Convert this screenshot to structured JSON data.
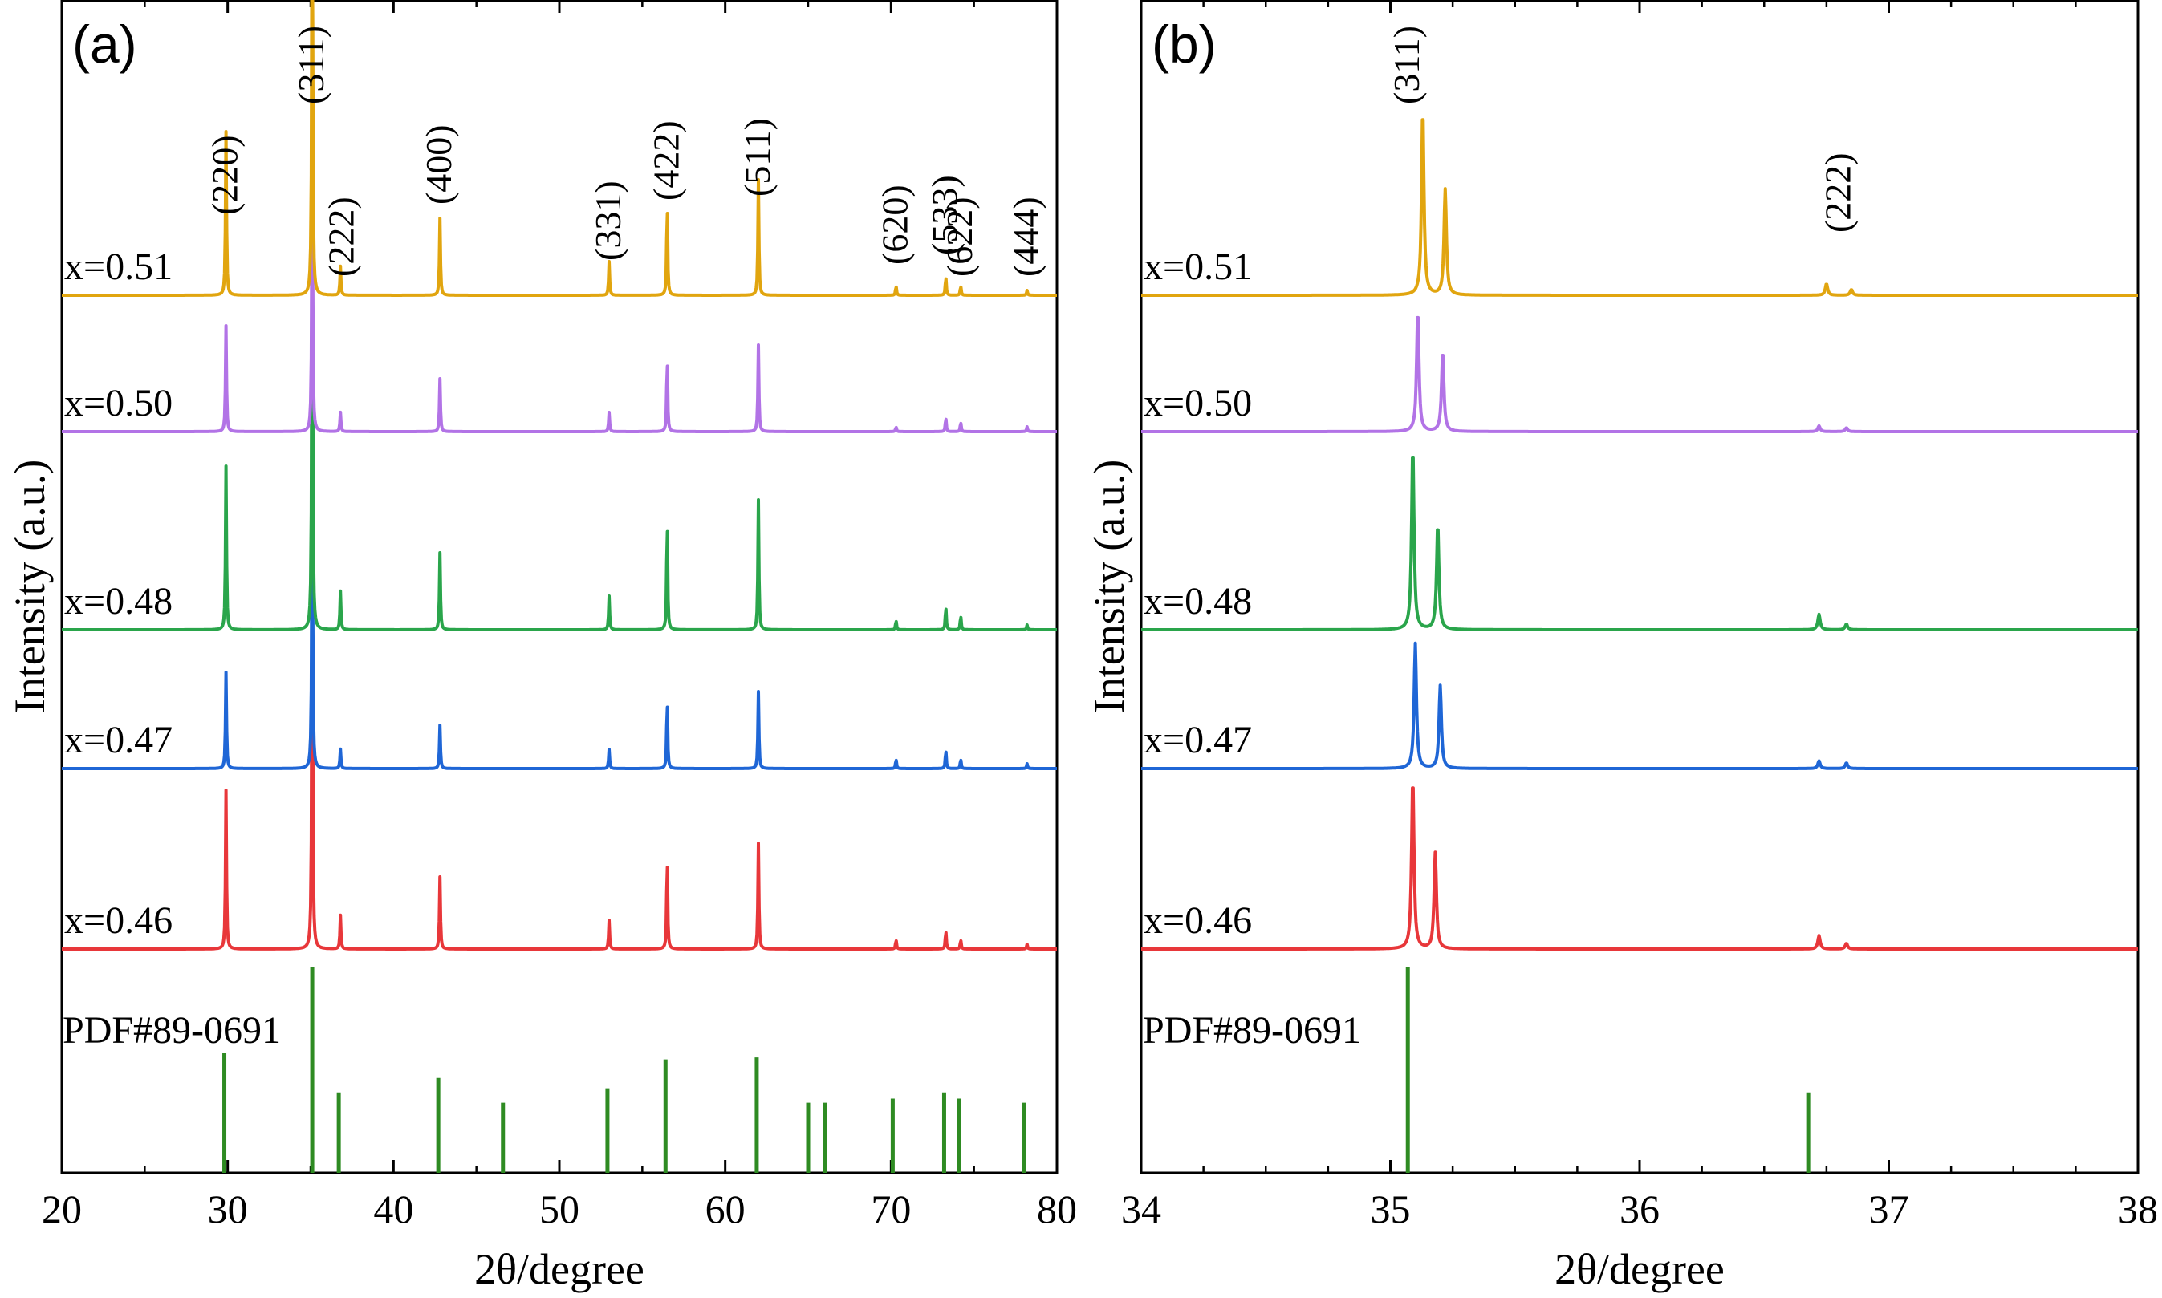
{
  "chart_data": [
    {
      "panel": "(a)",
      "type": "line",
      "xlabel": "2θ/degree",
      "ylabel": "Intensity (a.u.)",
      "xlim": [
        20,
        80
      ],
      "xticks": [
        20,
        30,
        40,
        50,
        60,
        70,
        80
      ],
      "yticks_shown": false,
      "reference_label": "PDF#89-0691",
      "reference_color": "#2e8b22",
      "reference_peaks": [
        {
          "x": 29.8,
          "h": 0.58
        },
        {
          "x": 35.1,
          "h": 1.0
        },
        {
          "x": 36.7,
          "h": 0.39
        },
        {
          "x": 42.7,
          "h": 0.46
        },
        {
          "x": 46.6,
          "h": 0.34
        },
        {
          "x": 52.9,
          "h": 0.41
        },
        {
          "x": 56.4,
          "h": 0.55
        },
        {
          "x": 61.9,
          "h": 0.56
        },
        {
          "x": 65.0,
          "h": 0.34
        },
        {
          "x": 66.0,
          "h": 0.34
        },
        {
          "x": 70.1,
          "h": 0.36
        },
        {
          "x": 73.2,
          "h": 0.39
        },
        {
          "x": 74.1,
          "h": 0.36
        },
        {
          "x": 78.0,
          "h": 0.34
        }
      ],
      "peak_labels": [
        {
          "x": 29.9,
          "text": "(220)"
        },
        {
          "x": 35.1,
          "text": "(311)"
        },
        {
          "x": 36.9,
          "text": "(222)"
        },
        {
          "x": 42.8,
          "text": "(400)"
        },
        {
          "x": 53.0,
          "text": "(331)"
        },
        {
          "x": 56.5,
          "text": "(422)"
        },
        {
          "x": 62.0,
          "text": "(511)"
        },
        {
          "x": 70.3,
          "text": "(620)"
        },
        {
          "x": 73.3,
          "text": "(533)"
        },
        {
          "x": 74.2,
          "text": "(622)"
        },
        {
          "x": 78.2,
          "text": "(444)"
        }
      ],
      "series": [
        {
          "name": "x=0.46",
          "color": "#e8373a",
          "peaks": [
            {
              "x": 29.9,
              "h": 0.33
            },
            {
              "x": 35.1,
              "h": 0.85
            },
            {
              "x": 36.8,
              "h": 0.07
            },
            {
              "x": 42.8,
              "h": 0.15
            },
            {
              "x": 53.0,
              "h": 0.06
            },
            {
              "x": 56.5,
              "h": 0.2
            },
            {
              "x": 62.0,
              "h": 0.22
            },
            {
              "x": 70.3,
              "h": 0.02
            },
            {
              "x": 73.3,
              "h": 0.04
            },
            {
              "x": 74.2,
              "h": 0.02
            },
            {
              "x": 78.2,
              "h": 0.01
            }
          ]
        },
        {
          "name": "x=0.47",
          "color": "#1f66d6",
          "peaks": [
            {
              "x": 29.9,
              "h": 0.2
            },
            {
              "x": 35.1,
              "h": 0.62
            },
            {
              "x": 36.8,
              "h": 0.04
            },
            {
              "x": 42.8,
              "h": 0.09
            },
            {
              "x": 53.0,
              "h": 0.04
            },
            {
              "x": 56.5,
              "h": 0.15
            },
            {
              "x": 62.0,
              "h": 0.16
            },
            {
              "x": 70.3,
              "h": 0.02
            },
            {
              "x": 73.3,
              "h": 0.04
            },
            {
              "x": 74.2,
              "h": 0.02
            },
            {
              "x": 78.2,
              "h": 0.01
            }
          ]
        },
        {
          "name": "x=0.48",
          "color": "#2aa54b",
          "peaks": [
            {
              "x": 29.9,
              "h": 0.34
            },
            {
              "x": 35.1,
              "h": 0.93
            },
            {
              "x": 36.8,
              "h": 0.08
            },
            {
              "x": 42.8,
              "h": 0.16
            },
            {
              "x": 53.0,
              "h": 0.07
            },
            {
              "x": 56.5,
              "h": 0.24
            },
            {
              "x": 62.0,
              "h": 0.27
            },
            {
              "x": 70.3,
              "h": 0.02
            },
            {
              "x": 73.3,
              "h": 0.05
            },
            {
              "x": 74.2,
              "h": 0.03
            },
            {
              "x": 78.2,
              "h": 0.01
            }
          ]
        },
        {
          "name": "x=0.50",
          "color": "#b273e6",
          "peaks": [
            {
              "x": 29.9,
              "h": 0.22
            },
            {
              "x": 35.1,
              "h": 0.58
            },
            {
              "x": 36.8,
              "h": 0.04
            },
            {
              "x": 42.8,
              "h": 0.11
            },
            {
              "x": 53.0,
              "h": 0.04
            },
            {
              "x": 56.5,
              "h": 0.16
            },
            {
              "x": 62.0,
              "h": 0.18
            },
            {
              "x": 70.3,
              "h": 0.01
            },
            {
              "x": 73.3,
              "h": 0.03
            },
            {
              "x": 74.2,
              "h": 0.02
            },
            {
              "x": 78.2,
              "h": 0.01
            }
          ]
        },
        {
          "name": "x=0.51",
          "color": "#e1a50f",
          "peaks": [
            {
              "x": 29.9,
              "h": 0.34
            },
            {
              "x": 35.1,
              "h": 0.95
            },
            {
              "x": 36.8,
              "h": 0.06
            },
            {
              "x": 42.8,
              "h": 0.16
            },
            {
              "x": 53.0,
              "h": 0.07
            },
            {
              "x": 56.5,
              "h": 0.2
            },
            {
              "x": 62.0,
              "h": 0.24
            },
            {
              "x": 70.3,
              "h": 0.02
            },
            {
              "x": 73.3,
              "h": 0.04
            },
            {
              "x": 74.2,
              "h": 0.02
            },
            {
              "x": 78.2,
              "h": 0.01
            }
          ]
        }
      ]
    },
    {
      "panel": "(b)",
      "type": "line",
      "xlabel": "2θ/degree",
      "ylabel": "Intensity (a.u.)",
      "xlim": [
        34,
        38
      ],
      "xticks": [
        34,
        35,
        36,
        37,
        38
      ],
      "yticks_shown": false,
      "reference_label": "PDF#89-0691",
      "reference_color": "#2e8b22",
      "reference_peaks": [
        {
          "x": 35.07,
          "h": 1.0
        },
        {
          "x": 36.68,
          "h": 0.39
        }
      ],
      "peak_labels": [
        {
          "x": 35.07,
          "text": "(311)"
        },
        {
          "x": 36.8,
          "text": "(222)"
        }
      ],
      "series": [
        {
          "name": "x=0.46",
          "color": "#e8373a",
          "peaks": [
            {
              "x": 35.09,
              "h": 0.89
            },
            {
              "x": 35.18,
              "h": 0.5
            },
            {
              "x": 36.72,
              "h": 0.07
            },
            {
              "x": 36.83,
              "h": 0.03
            }
          ]
        },
        {
          "name": "x=0.47",
          "color": "#1f66d6",
          "peaks": [
            {
              "x": 35.1,
              "h": 0.65
            },
            {
              "x": 35.2,
              "h": 0.43
            },
            {
              "x": 36.72,
              "h": 0.04
            },
            {
              "x": 36.83,
              "h": 0.03
            }
          ]
        },
        {
          "name": "x=0.48",
          "color": "#2aa54b",
          "peaks": [
            {
              "x": 35.09,
              "h": 0.95
            },
            {
              "x": 35.19,
              "h": 0.55
            },
            {
              "x": 36.72,
              "h": 0.08
            },
            {
              "x": 36.83,
              "h": 0.03
            }
          ]
        },
        {
          "name": "x=0.50",
          "color": "#b273e6",
          "peaks": [
            {
              "x": 35.11,
              "h": 0.63
            },
            {
              "x": 35.21,
              "h": 0.42
            },
            {
              "x": 36.72,
              "h": 0.03
            },
            {
              "x": 36.83,
              "h": 0.02
            }
          ]
        },
        {
          "name": "x=0.51",
          "color": "#e1a50f",
          "peaks": [
            {
              "x": 35.13,
              "h": 0.97
            },
            {
              "x": 35.22,
              "h": 0.55
            },
            {
              "x": 36.75,
              "h": 0.06
            },
            {
              "x": 36.85,
              "h": 0.03
            }
          ]
        }
      ]
    }
  ]
}
